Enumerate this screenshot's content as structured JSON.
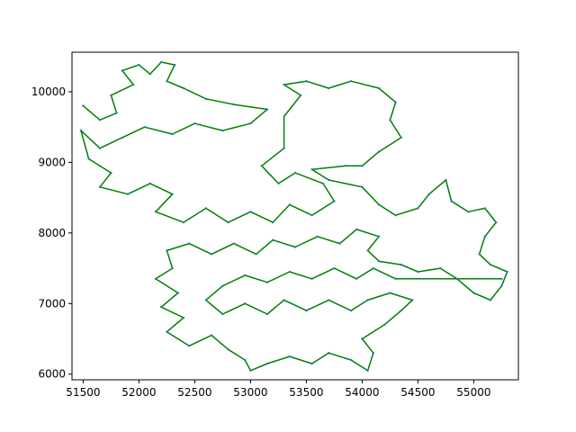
{
  "chart_data": {
    "type": "line",
    "title": "",
    "xlabel": "",
    "ylabel": "",
    "xlim": [
      51400,
      55400
    ],
    "ylim": [
      5920,
      10560
    ],
    "x_ticks": [
      51500,
      52000,
      52500,
      53000,
      53500,
      54000,
      54500,
      55000
    ],
    "x_tick_labels": [
      "51500",
      "52000",
      "52500",
      "53000",
      "53500",
      "54000",
      "54500",
      "55000"
    ],
    "y_ticks": [
      6000,
      7000,
      8000,
      9000,
      10000
    ],
    "y_tick_labels": [
      "6000",
      "7000",
      "8000",
      "9000",
      "10000"
    ],
    "grid": false,
    "legend": "none",
    "series": [
      {
        "kind": "tour-route",
        "color": "#008000",
        "marker_color": "#1f77b4",
        "points": [
          [
            51500,
            9800
          ],
          [
            51650,
            9600
          ],
          [
            51800,
            9700
          ],
          [
            51750,
            9950
          ],
          [
            51950,
            10100
          ],
          [
            51850,
            10300
          ],
          [
            52000,
            10380
          ],
          [
            52100,
            10250
          ],
          [
            52200,
            10420
          ],
          [
            52320,
            10380
          ],
          [
            52250,
            10150
          ],
          [
            52400,
            10050
          ],
          [
            52600,
            9900
          ],
          [
            52850,
            9820
          ],
          [
            53150,
            9750
          ],
          [
            53000,
            9550
          ],
          [
            52750,
            9450
          ],
          [
            52500,
            9550
          ],
          [
            52300,
            9400
          ],
          [
            52050,
            9500
          ],
          [
            51850,
            9350
          ],
          [
            51650,
            9200
          ],
          [
            51480,
            9450
          ],
          [
            51550,
            9050
          ],
          [
            51750,
            8850
          ],
          [
            51650,
            8650
          ],
          [
            51900,
            8550
          ],
          [
            52100,
            8700
          ],
          [
            52300,
            8550
          ],
          [
            52150,
            8300
          ],
          [
            52400,
            8150
          ],
          [
            52600,
            8350
          ],
          [
            52800,
            8150
          ],
          [
            53000,
            8300
          ],
          [
            53200,
            8150
          ],
          [
            53350,
            8400
          ],
          [
            53550,
            8250
          ],
          [
            53750,
            8450
          ],
          [
            53650,
            8700
          ],
          [
            53400,
            8850
          ],
          [
            53250,
            8700
          ],
          [
            53100,
            8950
          ],
          [
            53300,
            9200
          ],
          [
            53300,
            9650
          ],
          [
            53450,
            9950
          ],
          [
            53300,
            10100
          ],
          [
            53500,
            10150
          ],
          [
            53700,
            10050
          ],
          [
            53900,
            10150
          ],
          [
            54150,
            10050
          ],
          [
            54300,
            9850
          ],
          [
            54250,
            9600
          ],
          [
            54350,
            9350
          ],
          [
            54150,
            9150
          ],
          [
            54000,
            8950
          ],
          [
            53850,
            8950
          ],
          [
            53550,
            8900
          ],
          [
            53700,
            8750
          ],
          [
            54000,
            8650
          ],
          [
            54150,
            8400
          ],
          [
            54300,
            8250
          ],
          [
            54500,
            8350
          ],
          [
            54600,
            8550
          ],
          [
            54750,
            8750
          ],
          [
            54800,
            8450
          ],
          [
            54950,
            8300
          ],
          [
            55100,
            8350
          ],
          [
            55200,
            8150
          ],
          [
            55100,
            7950
          ],
          [
            55050,
            7700
          ],
          [
            55150,
            7550
          ],
          [
            55300,
            7450
          ],
          [
            55250,
            7250
          ],
          [
            55150,
            7050
          ],
          [
            55000,
            7150
          ],
          [
            54850,
            7350
          ],
          [
            54700,
            7500
          ],
          [
            54500,
            7450
          ],
          [
            54350,
            7550
          ],
          [
            54150,
            7600
          ],
          [
            54050,
            7750
          ],
          [
            54150,
            7950
          ],
          [
            53950,
            8050
          ],
          [
            53800,
            7850
          ],
          [
            53600,
            7950
          ],
          [
            53400,
            7800
          ],
          [
            53200,
            7900
          ],
          [
            53050,
            7700
          ],
          [
            52850,
            7850
          ],
          [
            52650,
            7700
          ],
          [
            52450,
            7850
          ],
          [
            52250,
            7750
          ],
          [
            52300,
            7500
          ],
          [
            52150,
            7350
          ],
          [
            52350,
            7150
          ],
          [
            52200,
            6950
          ],
          [
            52400,
            6800
          ],
          [
            52250,
            6600
          ],
          [
            52450,
            6400
          ],
          [
            52650,
            6550
          ],
          [
            52800,
            6350
          ],
          [
            52950,
            6200
          ],
          [
            53000,
            6050
          ],
          [
            53150,
            6150
          ],
          [
            53350,
            6250
          ],
          [
            53550,
            6150
          ],
          [
            53700,
            6300
          ],
          [
            53900,
            6200
          ],
          [
            54050,
            6050
          ],
          [
            54100,
            6300
          ],
          [
            54000,
            6500
          ],
          [
            54200,
            6700
          ],
          [
            54350,
            6900
          ],
          [
            54450,
            7050
          ],
          [
            54250,
            7150
          ],
          [
            54050,
            7050
          ],
          [
            53900,
            6900
          ],
          [
            53700,
            7050
          ],
          [
            53500,
            6900
          ],
          [
            53300,
            7050
          ],
          [
            53150,
            6850
          ],
          [
            52950,
            7000
          ],
          [
            52750,
            6850
          ],
          [
            52600,
            7050
          ],
          [
            52750,
            7250
          ],
          [
            52950,
            7400
          ],
          [
            53150,
            7300
          ],
          [
            53350,
            7450
          ],
          [
            53550,
            7350
          ],
          [
            53750,
            7500
          ],
          [
            53950,
            7350
          ],
          [
            54100,
            7500
          ],
          [
            54300,
            7350
          ],
          [
            55250,
            7350
          ]
        ]
      }
    ]
  }
}
